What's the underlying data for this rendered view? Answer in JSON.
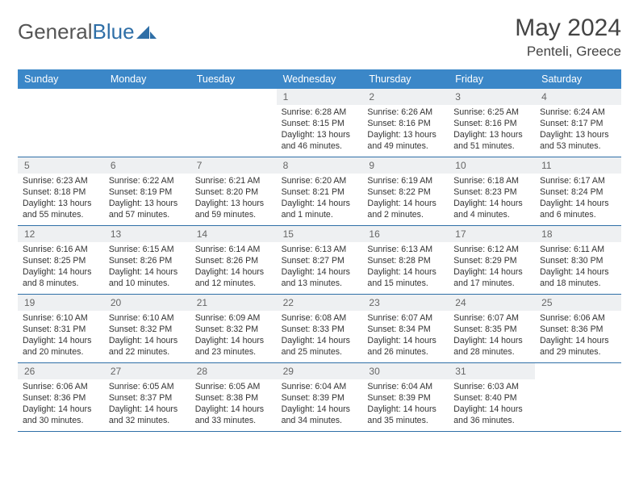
{
  "brand": {
    "part1": "General",
    "part2": "Blue"
  },
  "title": "May 2024",
  "location": "Penteli, Greece",
  "colors": {
    "header_bg": "#3b87c8",
    "header_fg": "#ffffff",
    "daynum_bg": "#eef0f2",
    "rule": "#2f6fa7",
    "text": "#333333"
  },
  "day_names": [
    "Sunday",
    "Monday",
    "Tuesday",
    "Wednesday",
    "Thursday",
    "Friday",
    "Saturday"
  ],
  "weeks": [
    [
      {
        "n": "",
        "sr": "",
        "ss": "",
        "dl": ""
      },
      {
        "n": "",
        "sr": "",
        "ss": "",
        "dl": ""
      },
      {
        "n": "",
        "sr": "",
        "ss": "",
        "dl": ""
      },
      {
        "n": "1",
        "sr": "Sunrise: 6:28 AM",
        "ss": "Sunset: 8:15 PM",
        "dl": "Daylight: 13 hours and 46 minutes."
      },
      {
        "n": "2",
        "sr": "Sunrise: 6:26 AM",
        "ss": "Sunset: 8:16 PM",
        "dl": "Daylight: 13 hours and 49 minutes."
      },
      {
        "n": "3",
        "sr": "Sunrise: 6:25 AM",
        "ss": "Sunset: 8:16 PM",
        "dl": "Daylight: 13 hours and 51 minutes."
      },
      {
        "n": "4",
        "sr": "Sunrise: 6:24 AM",
        "ss": "Sunset: 8:17 PM",
        "dl": "Daylight: 13 hours and 53 minutes."
      }
    ],
    [
      {
        "n": "5",
        "sr": "Sunrise: 6:23 AM",
        "ss": "Sunset: 8:18 PM",
        "dl": "Daylight: 13 hours and 55 minutes."
      },
      {
        "n": "6",
        "sr": "Sunrise: 6:22 AM",
        "ss": "Sunset: 8:19 PM",
        "dl": "Daylight: 13 hours and 57 minutes."
      },
      {
        "n": "7",
        "sr": "Sunrise: 6:21 AM",
        "ss": "Sunset: 8:20 PM",
        "dl": "Daylight: 13 hours and 59 minutes."
      },
      {
        "n": "8",
        "sr": "Sunrise: 6:20 AM",
        "ss": "Sunset: 8:21 PM",
        "dl": "Daylight: 14 hours and 1 minute."
      },
      {
        "n": "9",
        "sr": "Sunrise: 6:19 AM",
        "ss": "Sunset: 8:22 PM",
        "dl": "Daylight: 14 hours and 2 minutes."
      },
      {
        "n": "10",
        "sr": "Sunrise: 6:18 AM",
        "ss": "Sunset: 8:23 PM",
        "dl": "Daylight: 14 hours and 4 minutes."
      },
      {
        "n": "11",
        "sr": "Sunrise: 6:17 AM",
        "ss": "Sunset: 8:24 PM",
        "dl": "Daylight: 14 hours and 6 minutes."
      }
    ],
    [
      {
        "n": "12",
        "sr": "Sunrise: 6:16 AM",
        "ss": "Sunset: 8:25 PM",
        "dl": "Daylight: 14 hours and 8 minutes."
      },
      {
        "n": "13",
        "sr": "Sunrise: 6:15 AM",
        "ss": "Sunset: 8:26 PM",
        "dl": "Daylight: 14 hours and 10 minutes."
      },
      {
        "n": "14",
        "sr": "Sunrise: 6:14 AM",
        "ss": "Sunset: 8:26 PM",
        "dl": "Daylight: 14 hours and 12 minutes."
      },
      {
        "n": "15",
        "sr": "Sunrise: 6:13 AM",
        "ss": "Sunset: 8:27 PM",
        "dl": "Daylight: 14 hours and 13 minutes."
      },
      {
        "n": "16",
        "sr": "Sunrise: 6:13 AM",
        "ss": "Sunset: 8:28 PM",
        "dl": "Daylight: 14 hours and 15 minutes."
      },
      {
        "n": "17",
        "sr": "Sunrise: 6:12 AM",
        "ss": "Sunset: 8:29 PM",
        "dl": "Daylight: 14 hours and 17 minutes."
      },
      {
        "n": "18",
        "sr": "Sunrise: 6:11 AM",
        "ss": "Sunset: 8:30 PM",
        "dl": "Daylight: 14 hours and 18 minutes."
      }
    ],
    [
      {
        "n": "19",
        "sr": "Sunrise: 6:10 AM",
        "ss": "Sunset: 8:31 PM",
        "dl": "Daylight: 14 hours and 20 minutes."
      },
      {
        "n": "20",
        "sr": "Sunrise: 6:10 AM",
        "ss": "Sunset: 8:32 PM",
        "dl": "Daylight: 14 hours and 22 minutes."
      },
      {
        "n": "21",
        "sr": "Sunrise: 6:09 AM",
        "ss": "Sunset: 8:32 PM",
        "dl": "Daylight: 14 hours and 23 minutes."
      },
      {
        "n": "22",
        "sr": "Sunrise: 6:08 AM",
        "ss": "Sunset: 8:33 PM",
        "dl": "Daylight: 14 hours and 25 minutes."
      },
      {
        "n": "23",
        "sr": "Sunrise: 6:07 AM",
        "ss": "Sunset: 8:34 PM",
        "dl": "Daylight: 14 hours and 26 minutes."
      },
      {
        "n": "24",
        "sr": "Sunrise: 6:07 AM",
        "ss": "Sunset: 8:35 PM",
        "dl": "Daylight: 14 hours and 28 minutes."
      },
      {
        "n": "25",
        "sr": "Sunrise: 6:06 AM",
        "ss": "Sunset: 8:36 PM",
        "dl": "Daylight: 14 hours and 29 minutes."
      }
    ],
    [
      {
        "n": "26",
        "sr": "Sunrise: 6:06 AM",
        "ss": "Sunset: 8:36 PM",
        "dl": "Daylight: 14 hours and 30 minutes."
      },
      {
        "n": "27",
        "sr": "Sunrise: 6:05 AM",
        "ss": "Sunset: 8:37 PM",
        "dl": "Daylight: 14 hours and 32 minutes."
      },
      {
        "n": "28",
        "sr": "Sunrise: 6:05 AM",
        "ss": "Sunset: 8:38 PM",
        "dl": "Daylight: 14 hours and 33 minutes."
      },
      {
        "n": "29",
        "sr": "Sunrise: 6:04 AM",
        "ss": "Sunset: 8:39 PM",
        "dl": "Daylight: 14 hours and 34 minutes."
      },
      {
        "n": "30",
        "sr": "Sunrise: 6:04 AM",
        "ss": "Sunset: 8:39 PM",
        "dl": "Daylight: 14 hours and 35 minutes."
      },
      {
        "n": "31",
        "sr": "Sunrise: 6:03 AM",
        "ss": "Sunset: 8:40 PM",
        "dl": "Daylight: 14 hours and 36 minutes."
      },
      {
        "n": "",
        "sr": "",
        "ss": "",
        "dl": ""
      }
    ]
  ]
}
